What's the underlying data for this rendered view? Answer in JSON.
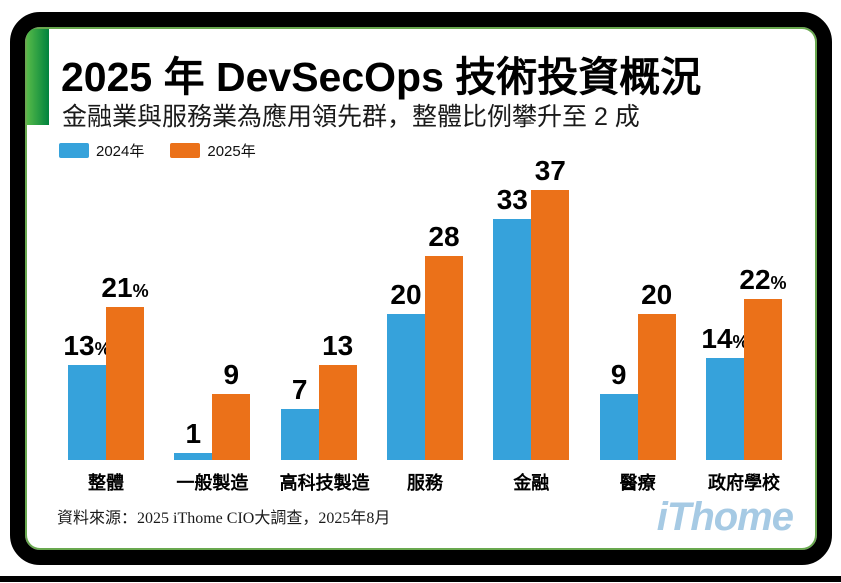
{
  "header": {
    "title": "2025 年 DevSecOps 技術投資概況",
    "subtitle": "金融業與服務業為應用領先群，整體比例攀升至 2 成"
  },
  "chart_data": {
    "type": "bar",
    "categories": [
      "整體",
      "一般製造",
      "高科技製造",
      "服務",
      "金融",
      "醫療",
      "政府學校"
    ],
    "series": [
      {
        "name": "2024年",
        "color": "#36a2db",
        "values": [
          13,
          1,
          7,
          20,
          33,
          9,
          14
        ]
      },
      {
        "name": "2025年",
        "color": "#eb7119",
        "values": [
          21,
          9,
          13,
          28,
          37,
          20,
          22
        ]
      }
    ],
    "unit": "%",
    "suffix_by_category": [
      "%",
      "",
      "",
      "",
      "",
      "",
      "%"
    ],
    "title": "2025 年 DevSecOps 技術投資概況",
    "xlabel": "",
    "ylabel": "",
    "ylim": [
      0,
      40
    ],
    "grid": false,
    "legend_position": "top-left",
    "value_labels": "above-bars"
  },
  "footer": {
    "source": "資料來源：2025 iThome CIO大調查，2025年8月",
    "logo_text": "iThome"
  },
  "colors": {
    "bar_2024": "#36a2db",
    "bar_2025": "#eb7119",
    "accent_green_light": "#55b948",
    "accent_green_dark": "#00833e",
    "frame_black": "#000000",
    "inner_border_green": "#69a84f",
    "logo_blue": "#a6cae4"
  }
}
